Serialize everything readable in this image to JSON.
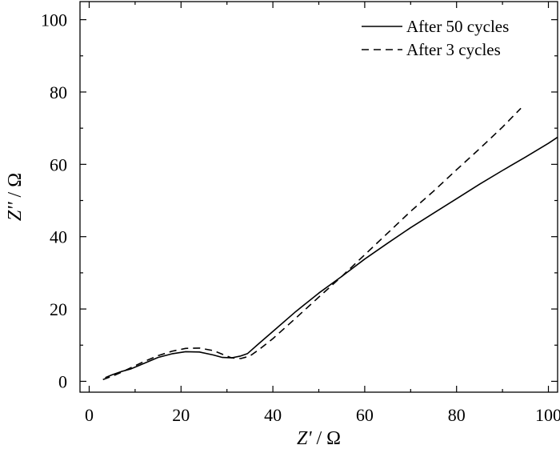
{
  "chart_data": {
    "type": "line",
    "xlabel_var": "Z'",
    "ylabel_var": "Z''",
    "unit_sep": " / ",
    "unit": "Ω",
    "xlim": [
      -2,
      102
    ],
    "ylim": [
      -3,
      105
    ],
    "x_ticks": [
      0,
      20,
      40,
      60,
      80,
      100
    ],
    "y_ticks": [
      0,
      20,
      40,
      60,
      80,
      100
    ],
    "grid": false,
    "legend_position": "top-right",
    "series": [
      {
        "name": "After 50 cycles",
        "style": "solid",
        "color": "#000000",
        "points": [
          [
            3.5,
            1
          ],
          [
            5,
            1.8
          ],
          [
            7,
            2.7
          ],
          [
            9,
            3.4
          ],
          [
            12,
            5
          ],
          [
            15,
            6.6
          ],
          [
            18,
            7.6
          ],
          [
            21,
            8.2
          ],
          [
            24,
            8.1
          ],
          [
            27,
            7.3
          ],
          [
            29,
            6.6
          ],
          [
            31,
            6.5
          ],
          [
            33,
            7
          ],
          [
            34.5,
            7.7
          ],
          [
            37,
            10.5
          ],
          [
            40,
            13.8
          ],
          [
            45,
            19.3
          ],
          [
            50,
            24.4
          ],
          [
            55,
            29
          ],
          [
            60,
            33.8
          ],
          [
            65,
            38.2
          ],
          [
            70,
            42.5
          ],
          [
            75,
            46.5
          ],
          [
            80,
            50.5
          ],
          [
            85,
            54.5
          ],
          [
            90,
            58.3
          ],
          [
            95,
            62
          ],
          [
            100,
            65.8
          ],
          [
            102,
            67.5
          ]
        ]
      },
      {
        "name": "After 3 cycles",
        "style": "dashed",
        "color": "#000000",
        "points": [
          [
            3,
            0.5
          ],
          [
            5,
            1.4
          ],
          [
            7,
            2.5
          ],
          [
            9,
            3.7
          ],
          [
            12,
            5.5
          ],
          [
            15,
            7.1
          ],
          [
            18,
            8.3
          ],
          [
            21,
            9.1
          ],
          [
            24,
            9.2
          ],
          [
            27,
            8.5
          ],
          [
            29,
            7.5
          ],
          [
            31,
            6.5
          ],
          [
            33,
            6.3
          ],
          [
            35,
            7
          ],
          [
            37,
            8.8
          ],
          [
            40,
            11.8
          ],
          [
            45,
            17.5
          ],
          [
            50,
            23.3
          ],
          [
            55,
            29
          ],
          [
            60,
            35
          ],
          [
            65,
            41
          ],
          [
            70,
            47
          ],
          [
            75,
            52.6
          ],
          [
            80,
            58.5
          ],
          [
            85,
            64.3
          ],
          [
            90,
            70.3
          ],
          [
            94,
            75.5
          ]
        ]
      }
    ]
  }
}
